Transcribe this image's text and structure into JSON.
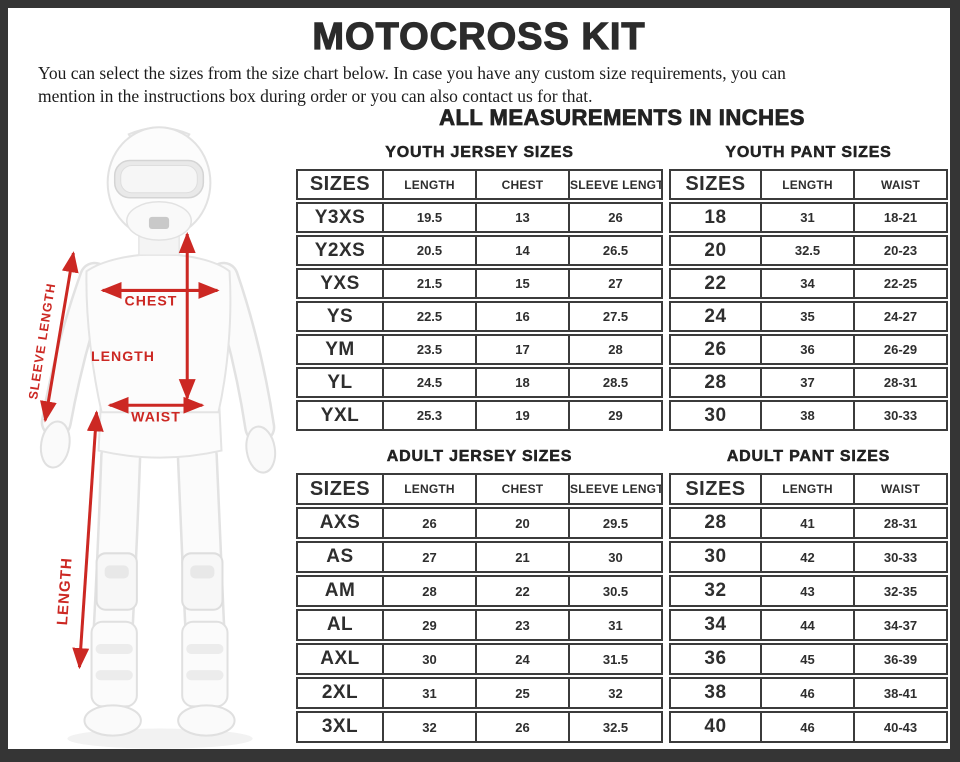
{
  "page": {
    "title": "MOTOCROSS KIT",
    "intro": "You can select the sizes from the size chart below. In case you have any custom size requirements, you can mention in the instructions box during order or you can also contact us for that.",
    "units_note": "ALL MEASUREMENTS IN INCHES"
  },
  "figure": {
    "description": "motocross rider mannequin in white gear with measurement arrows",
    "annotations": {
      "sleeve_length": "SLEEVE LENGTH",
      "chest": "CHEST",
      "jersey_length": "LENGTH",
      "waist": "WAIST",
      "pant_length": "LENGTH"
    }
  },
  "tables": {
    "youth_jersey": {
      "title": "YOUTH JERSEY SIZES",
      "headers": [
        "SIZES",
        "LENGTH",
        "CHEST",
        "SLEEVE LENGTH"
      ],
      "rows": [
        [
          "Y3XS",
          "19.5",
          "13",
          "26"
        ],
        [
          "Y2XS",
          "20.5",
          "14",
          "26.5"
        ],
        [
          "YXS",
          "21.5",
          "15",
          "27"
        ],
        [
          "YS",
          "22.5",
          "16",
          "27.5"
        ],
        [
          "YM",
          "23.5",
          "17",
          "28"
        ],
        [
          "YL",
          "24.5",
          "18",
          "28.5"
        ],
        [
          "YXL",
          "25.3",
          "19",
          "29"
        ]
      ]
    },
    "youth_pant": {
      "title": "YOUTH PANT SIZES",
      "headers": [
        "SIZES",
        "LENGTH",
        "WAIST"
      ],
      "rows": [
        [
          "18",
          "31",
          "18-21"
        ],
        [
          "20",
          "32.5",
          "20-23"
        ],
        [
          "22",
          "34",
          "22-25"
        ],
        [
          "24",
          "35",
          "24-27"
        ],
        [
          "26",
          "36",
          "26-29"
        ],
        [
          "28",
          "37",
          "28-31"
        ],
        [
          "30",
          "38",
          "30-33"
        ]
      ]
    },
    "adult_jersey": {
      "title": "ADULT JERSEY SIZES",
      "headers": [
        "SIZES",
        "LENGTH",
        "CHEST",
        "SLEEVE LENGTH"
      ],
      "rows": [
        [
          "AXS",
          "26",
          "20",
          "29.5"
        ],
        [
          "AS",
          "27",
          "21",
          "30"
        ],
        [
          "AM",
          "28",
          "22",
          "30.5"
        ],
        [
          "AL",
          "29",
          "23",
          "31"
        ],
        [
          "AXL",
          "30",
          "24",
          "31.5"
        ],
        [
          "2XL",
          "31",
          "25",
          "32"
        ],
        [
          "3XL",
          "32",
          "26",
          "32.5"
        ]
      ]
    },
    "adult_pant": {
      "title": "ADULT PANT SIZES",
      "headers": [
        "SIZES",
        "LENGTH",
        "WAIST"
      ],
      "rows": [
        [
          "28",
          "41",
          "28-31"
        ],
        [
          "30",
          "42",
          "30-33"
        ],
        [
          "32",
          "43",
          "32-35"
        ],
        [
          "34",
          "44",
          "34-37"
        ],
        [
          "36",
          "45",
          "36-39"
        ],
        [
          "38",
          "46",
          "38-41"
        ],
        [
          "40",
          "46",
          "40-43"
        ]
      ]
    }
  },
  "colors": {
    "accent_red": "#cc2823",
    "frame": "#353535",
    "table_border": "#3b3b3b",
    "text": "#2b2b2b"
  }
}
